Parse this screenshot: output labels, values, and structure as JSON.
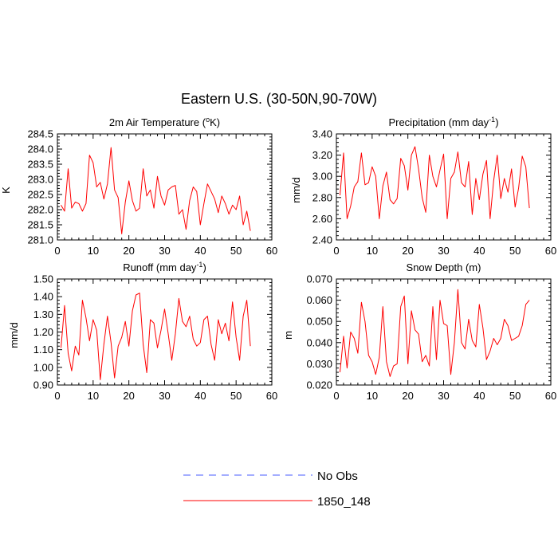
{
  "title": "Eastern U.S. (30-50N,90-70W)",
  "colors": {
    "model": "#ff0000",
    "obs": "#4a5cff",
    "axis": "#000000"
  },
  "legend": {
    "entries": [
      {
        "label": "No Obs",
        "style": "dashed",
        "color": "#4a5cff"
      },
      {
        "label": "1850_148",
        "style": "solid",
        "color": "#ff0000"
      }
    ]
  },
  "chart_data": [
    {
      "type": "line",
      "title": "2m Air Temperature (°K)",
      "title_parts": {
        "pre": "2m Air Temperature (",
        "sup": "o",
        "post": "K)"
      },
      "ylabel": "K",
      "xlim": [
        0,
        60
      ],
      "ylim": [
        281.0,
        284.5
      ],
      "xticks": [
        0,
        10,
        20,
        30,
        40,
        50,
        60
      ],
      "xtick_labels": [
        "0",
        "10",
        "20",
        "30",
        "40",
        "50",
        "60"
      ],
      "yticks": [
        281.0,
        281.5,
        282.0,
        282.5,
        283.0,
        283.5,
        284.0,
        284.5
      ],
      "ytick_labels": [
        "281.0",
        "281.5",
        "282.0",
        "282.5",
        "283.0",
        "283.5",
        "284.0",
        "284.5"
      ],
      "series": [
        {
          "name": "1850_148",
          "color": "#ff0000",
          "x": [
            1,
            2,
            3,
            4,
            5,
            6,
            7,
            8,
            9,
            10,
            11,
            12,
            13,
            14,
            15,
            16,
            17,
            18,
            19,
            20,
            21,
            22,
            23,
            24,
            25,
            26,
            27,
            28,
            29,
            30,
            31,
            32,
            33,
            34,
            35,
            36,
            37,
            38,
            39,
            40,
            41,
            42,
            43,
            44,
            45,
            46,
            47,
            48,
            49,
            50,
            51,
            52,
            53,
            54
          ],
          "y": [
            282.15,
            281.95,
            283.35,
            282.05,
            282.25,
            282.2,
            281.95,
            282.2,
            283.8,
            283.55,
            282.75,
            282.9,
            282.35,
            282.85,
            284.05,
            282.65,
            282.4,
            281.2,
            282.25,
            282.95,
            282.3,
            281.95,
            282.05,
            283.35,
            282.45,
            282.65,
            282.05,
            283.1,
            282.45,
            282.15,
            282.65,
            282.75,
            282.8,
            281.85,
            282.0,
            281.35,
            282.3,
            282.75,
            282.6,
            281.5,
            282.2,
            282.85,
            282.6,
            282.35,
            281.9,
            282.45,
            282.2,
            281.85,
            282.15,
            282.0,
            282.45,
            281.5,
            281.95,
            281.3
          ]
        }
      ]
    },
    {
      "type": "line",
      "title": "Precipitation (mm day⁻¹)",
      "title_parts": {
        "pre": "Precipitation (mm day",
        "sup": "-1",
        "post": ")"
      },
      "ylabel": "mm/d",
      "xlim": [
        0,
        60
      ],
      "ylim": [
        2.4,
        3.4
      ],
      "xticks": [
        0,
        10,
        20,
        30,
        40,
        50,
        60
      ],
      "xtick_labels": [
        "0",
        "10",
        "20",
        "30",
        "40",
        "50",
        "60"
      ],
      "yticks": [
        2.4,
        2.6,
        2.8,
        3.0,
        3.2,
        3.4
      ],
      "ytick_labels": [
        "2.40",
        "2.60",
        "2.80",
        "3.00",
        "3.20",
        "3.40"
      ],
      "series": [
        {
          "name": "1850_148",
          "color": "#ff0000",
          "x": [
            1,
            2,
            3,
            4,
            5,
            6,
            7,
            8,
            9,
            10,
            11,
            12,
            13,
            14,
            15,
            16,
            17,
            18,
            19,
            20,
            21,
            22,
            23,
            24,
            25,
            26,
            27,
            28,
            29,
            30,
            31,
            32,
            33,
            34,
            35,
            36,
            37,
            38,
            39,
            40,
            41,
            42,
            43,
            44,
            45,
            46,
            47,
            48,
            49,
            50,
            51,
            52,
            53,
            54
          ],
          "y": [
            2.82,
            3.22,
            2.6,
            2.72,
            2.9,
            2.95,
            3.22,
            2.92,
            2.94,
            3.09,
            3.0,
            2.6,
            2.91,
            3.04,
            2.78,
            2.74,
            2.79,
            3.17,
            3.1,
            2.87,
            3.2,
            3.28,
            3.07,
            2.8,
            2.66,
            3.2,
            3.0,
            2.9,
            3.06,
            3.21,
            2.6,
            2.98,
            3.04,
            3.23,
            2.94,
            2.9,
            3.14,
            2.64,
            2.98,
            2.78,
            3.02,
            3.15,
            2.6,
            2.96,
            3.2,
            2.79,
            2.98,
            2.85,
            3.07,
            2.71,
            2.89,
            3.19,
            3.09,
            2.7
          ]
        }
      ]
    },
    {
      "type": "line",
      "title": "Runoff (mm day⁻¹)",
      "title_parts": {
        "pre": "Runoff (mm day",
        "sup": "-1",
        "post": ")"
      },
      "ylabel": "mm/d",
      "xlim": [
        0,
        60
      ],
      "ylim": [
        0.9,
        1.5
      ],
      "xticks": [
        0,
        10,
        20,
        30,
        40,
        50,
        60
      ],
      "xtick_labels": [
        "0",
        "10",
        "20",
        "30",
        "40",
        "50",
        "60"
      ],
      "yticks": [
        0.9,
        1.0,
        1.1,
        1.2,
        1.3,
        1.4,
        1.5
      ],
      "ytick_labels": [
        "0.90",
        "1.00",
        "1.10",
        "1.20",
        "1.30",
        "1.40",
        "1.50"
      ],
      "series": [
        {
          "name": "1850_148",
          "color": "#ff0000",
          "x": [
            1,
            2,
            3,
            4,
            5,
            6,
            7,
            8,
            9,
            10,
            11,
            12,
            13,
            14,
            15,
            16,
            17,
            18,
            19,
            20,
            21,
            22,
            23,
            24,
            25,
            26,
            27,
            28,
            29,
            30,
            31,
            32,
            33,
            34,
            35,
            36,
            37,
            38,
            39,
            40,
            41,
            42,
            43,
            44,
            45,
            46,
            47,
            48,
            49,
            50,
            51,
            52,
            53,
            54
          ],
          "y": [
            1.11,
            1.35,
            1.08,
            0.98,
            1.12,
            1.07,
            1.38,
            1.28,
            1.15,
            1.27,
            1.21,
            0.93,
            1.13,
            1.29,
            1.14,
            0.94,
            1.12,
            1.17,
            1.26,
            1.12,
            1.32,
            1.41,
            1.42,
            1.13,
            0.97,
            1.27,
            1.25,
            1.11,
            1.21,
            1.33,
            1.19,
            1.04,
            1.19,
            1.39,
            1.26,
            1.23,
            1.29,
            1.16,
            1.12,
            1.14,
            1.27,
            1.29,
            1.13,
            1.04,
            1.27,
            1.19,
            1.25,
            1.15,
            1.37,
            1.17,
            1.04,
            1.29,
            1.38,
            1.12
          ]
        }
      ]
    },
    {
      "type": "line",
      "title": "Snow Depth (m)",
      "title_parts": {
        "pre": "Snow Depth (m)",
        "sup": "",
        "post": ""
      },
      "ylabel": "m",
      "xlim": [
        0,
        60
      ],
      "ylim": [
        0.02,
        0.07
      ],
      "xticks": [
        0,
        10,
        20,
        30,
        40,
        50,
        60
      ],
      "xtick_labels": [
        "0",
        "10",
        "20",
        "30",
        "40",
        "50",
        "60"
      ],
      "yticks": [
        0.02,
        0.03,
        0.04,
        0.05,
        0.06,
        0.07
      ],
      "ytick_labels": [
        "0.020",
        "0.030",
        "0.040",
        "0.050",
        "0.060",
        "0.070"
      ],
      "series": [
        {
          "name": "1850_148",
          "color": "#ff0000",
          "x": [
            1,
            2,
            3,
            4,
            5,
            6,
            7,
            8,
            9,
            10,
            11,
            12,
            13,
            14,
            15,
            16,
            17,
            18,
            19,
            20,
            21,
            22,
            23,
            24,
            25,
            26,
            27,
            28,
            29,
            30,
            31,
            32,
            33,
            34,
            35,
            36,
            37,
            38,
            39,
            40,
            41,
            42,
            43,
            44,
            45,
            46,
            47,
            48,
            49,
            50,
            51,
            52,
            53,
            54
          ],
          "y": [
            0.026,
            0.043,
            0.028,
            0.045,
            0.042,
            0.035,
            0.059,
            0.05,
            0.034,
            0.031,
            0.025,
            0.033,
            0.057,
            0.031,
            0.024,
            0.029,
            0.03,
            0.057,
            0.062,
            0.03,
            0.055,
            0.046,
            0.044,
            0.031,
            0.034,
            0.029,
            0.057,
            0.032,
            0.06,
            0.049,
            0.048,
            0.025,
            0.04,
            0.065,
            0.04,
            0.037,
            0.051,
            0.041,
            0.038,
            0.058,
            0.047,
            0.032,
            0.036,
            0.042,
            0.039,
            0.042,
            0.051,
            0.048,
            0.041,
            0.042,
            0.043,
            0.048,
            0.058,
            0.06
          ]
        }
      ]
    }
  ]
}
